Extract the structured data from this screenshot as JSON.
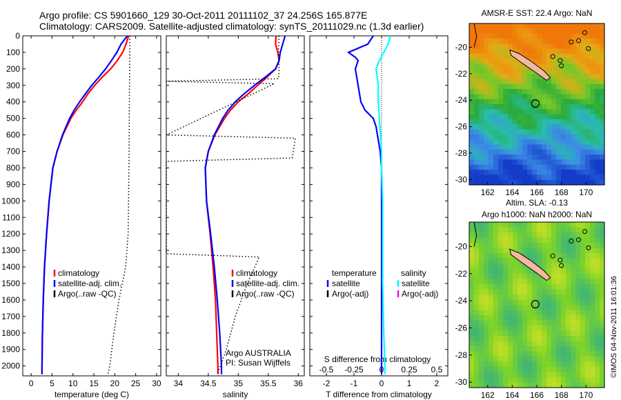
{
  "header": {
    "line1": "Argo profile: CS 5901660_129 30-Oct-2011 20111102_37 24.256S 165.877E",
    "line2": "Climatology: CARS2009. Satellite-adjusted climatology: synTS_20111029.nc (1.3d earlier)"
  },
  "footer": {
    "imos": "©IMOS 04-Nov-2011 16:01:36"
  },
  "colors": {
    "climatology": "#ff0000",
    "satellite": "#0000ff",
    "argo": "#000000",
    "sal_satellite": "#00ffff",
    "sal_argo": "#ff00ff"
  },
  "chart_data": [
    {
      "type": "line",
      "xlabel": "temperature (deg C)",
      "ylabel": "",
      "xlim": [
        -2,
        31
      ],
      "ylim": [
        2060,
        0
      ],
      "xticks": [
        "0",
        "5",
        "10",
        "15",
        "20",
        "25",
        "30"
      ],
      "yticks": [
        "0",
        "100",
        "200",
        "300",
        "400",
        "500",
        "600",
        "700",
        "800",
        "900",
        "1000",
        "1100",
        "1200",
        "1300",
        "1400",
        "1500",
        "1600",
        "1700",
        "1800",
        "1900",
        "2000"
      ],
      "legend": [
        "climatology",
        "satellite-adj. clim.",
        "Argo(..raw -QC)"
      ],
      "series": [
        {
          "name": "climatology",
          "color": "#ff0000",
          "depth": [
            0,
            50,
            100,
            150,
            200,
            250,
            300,
            350,
            400,
            450,
            500,
            600,
            700,
            800,
            1000,
            1200,
            1400,
            1600,
            1800,
            2000,
            2050
          ],
          "values": [
            23.3,
            22.7,
            21.9,
            20.6,
            19.0,
            17.0,
            15.2,
            13.6,
            12.3,
            10.8,
            9.5,
            7.6,
            6.2,
            5.2,
            4.3,
            3.7,
            3.2,
            2.9,
            2.7,
            2.6,
            2.6
          ]
        },
        {
          "name": "satellite-adj. clim.",
          "color": "#0000ff",
          "depth": [
            0,
            50,
            100,
            150,
            200,
            250,
            300,
            350,
            400,
            450,
            500,
            600,
            700,
            800,
            1000,
            1200,
            1400,
            1600,
            1800,
            2000,
            2050
          ],
          "values": [
            23.0,
            21.5,
            20.5,
            19.2,
            17.8,
            16.2,
            14.5,
            13.0,
            11.6,
            10.3,
            9.2,
            7.5,
            6.2,
            5.2,
            4.3,
            3.7,
            3.2,
            2.9,
            2.7,
            2.6,
            2.6
          ]
        },
        {
          "name": "Argo(..raw -QC)",
          "color": "#000000",
          "dotted": true,
          "depth": [
            0,
            400,
            800,
            1200,
            1400,
            1600,
            1800,
            2000,
            2050
          ],
          "values": [
            23.6,
            23.5,
            23.4,
            23.2,
            22.6,
            21.0,
            19.8,
            18.8,
            18.4
          ]
        }
      ]
    },
    {
      "type": "line",
      "xlabel": "salinity",
      "xlim": [
        33.8,
        36.1
      ],
      "ylim": [
        2060,
        0
      ],
      "xticks": [
        "34",
        "34.5",
        "35",
        "35.5",
        "36"
      ],
      "legend": [
        "climatology",
        "satellite-adj. clim.",
        "Argo(..raw -QC)"
      ],
      "annotation": [
        "Argo AUSTRALIA",
        "PI: Susan Wijffels"
      ],
      "series": [
        {
          "name": "climatology",
          "color": "#ff0000",
          "depth": [
            0,
            50,
            100,
            150,
            200,
            250,
            300,
            350,
            400,
            450,
            500,
            550,
            600,
            700,
            800,
            1000,
            1200,
            1400,
            1600,
            1800,
            2000,
            2050
          ],
          "values": [
            35.63,
            35.62,
            35.66,
            35.68,
            35.62,
            35.48,
            35.32,
            35.17,
            35.0,
            34.87,
            34.77,
            34.69,
            34.61,
            34.5,
            34.45,
            34.47,
            34.53,
            34.58,
            34.62,
            34.64,
            34.66,
            34.66
          ]
        },
        {
          "name": "satellite-adj. clim.",
          "color": "#0000ff",
          "depth": [
            0,
            50,
            100,
            150,
            200,
            250,
            300,
            350,
            400,
            450,
            500,
            550,
            600,
            700,
            800,
            1000,
            1200,
            1400,
            1600,
            1800,
            2000,
            2050
          ],
          "values": [
            35.78,
            35.74,
            35.7,
            35.68,
            35.62,
            35.45,
            35.27,
            35.1,
            34.95,
            34.83,
            34.74,
            34.67,
            34.6,
            34.5,
            34.45,
            34.47,
            34.54,
            34.6,
            34.65,
            34.69,
            34.72,
            34.72
          ]
        },
        {
          "name": "Argo(..raw -QC)",
          "color": "#000000",
          "dotted": true,
          "depth": [
            0,
            100,
            200,
            260,
            275,
            290,
            600,
            620,
            740,
            760,
            1320,
            1340,
            1500,
            1700,
            1900,
            2050
          ],
          "values": [
            35.68,
            35.67,
            35.68,
            35.67,
            33.8,
            35.6,
            33.8,
            35.95,
            35.9,
            33.8,
            33.8,
            35.35,
            35.15,
            34.95,
            34.8,
            34.65
          ]
        }
      ]
    },
    {
      "type": "line",
      "xlabel": "T difference from climatology",
      "x2label": "S difference from climatology",
      "xlim": [
        -2.6,
        2.4
      ],
      "x2lim": [
        -0.65,
        0.6
      ],
      "ylim": [
        2060,
        0
      ],
      "xticks": [
        "-2",
        "-1",
        "0",
        "1",
        "2"
      ],
      "x2ticks": [
        "-0.5",
        "-0.25",
        "0",
        "0.25",
        "0.5"
      ],
      "legend_headers": [
        "temperature",
        "salinity"
      ],
      "legend_left": [
        "satellite",
        "Argo(-adj)"
      ],
      "legend_right": [
        "satellite",
        "Argo(-adj)"
      ],
      "series": [
        {
          "name": "satellite",
          "group": "temperature",
          "color": "#0000ff",
          "depth": [
            0,
            50,
            100,
            130,
            150,
            200,
            250,
            300,
            350,
            400,
            450,
            500,
            550,
            600,
            650,
            700,
            800,
            900,
            1000,
            1200,
            1400,
            1600,
            1800,
            2000,
            2050
          ],
          "values": [
            -0.3,
            -0.5,
            -1.2,
            -0.95,
            -0.85,
            -0.95,
            -0.9,
            -0.85,
            -0.8,
            -0.75,
            -0.6,
            -0.3,
            -0.2,
            -0.15,
            -0.1,
            -0.05,
            0,
            0,
            0,
            0,
            0,
            0,
            0,
            0,
            0
          ]
        },
        {
          "name": "satellite",
          "group": "salinity",
          "color": "#00ffff",
          "axis": "x2",
          "depth": [
            0,
            50,
            100,
            150,
            200,
            250,
            300,
            400,
            500,
            600,
            700,
            800,
            1000,
            1200,
            1500,
            1800,
            2000,
            2050
          ],
          "values": [
            0.08,
            0.06,
            0.02,
            -0.02,
            -0.05,
            -0.04,
            -0.03,
            -0.03,
            -0.02,
            -0.01,
            0,
            0,
            0.01,
            0.01,
            0.01,
            0.02,
            0.03,
            0.03
          ]
        }
      ]
    }
  ],
  "maps": [
    {
      "title": [
        "AMSR-E SST: 22.4 Argo: NaN"
      ],
      "xticks": [
        "162",
        "164",
        "166",
        "168",
        "170"
      ],
      "yticks": [
        "-20",
        "-22",
        "-24",
        "-26",
        "-28",
        "-30"
      ],
      "marker": {
        "lon": 165.877,
        "lat": -24.256
      },
      "xlim": [
        160.5,
        171.5
      ],
      "ylim": [
        -30.4,
        -18.2
      ]
    },
    {
      "title": [
        "Altim. SLA: -0.13",
        "Argo h1000: NaN h2000: NaN"
      ],
      "xticks": [
        "162",
        "164",
        "166",
        "168",
        "170"
      ],
      "yticks": [
        "-20",
        "-22",
        "-24",
        "-26",
        "-28",
        "-30"
      ],
      "marker": {
        "lon": 165.877,
        "lat": -24.256
      },
      "xlim": [
        160.5,
        171.5
      ],
      "ylim": [
        -30.4,
        -18.2
      ]
    }
  ]
}
